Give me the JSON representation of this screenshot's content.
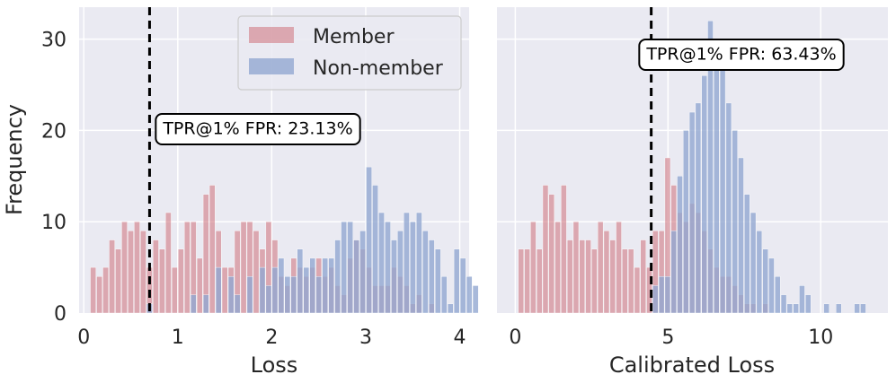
{
  "chart_data": [
    {
      "type": "histogram",
      "panel": "left",
      "xlabel": "Loss",
      "ylabel": "Frequency",
      "xlim": [
        -0.05,
        4.1
      ],
      "ylim": [
        0,
        33.5
      ],
      "xticks": [
        0,
        1,
        2,
        3,
        4
      ],
      "yticks": [
        0,
        10,
        20,
        30
      ],
      "bin_start": 0.07,
      "bin_width": 0.0667,
      "series": [
        {
          "name": "Member",
          "color": "#d17a84",
          "values": [
            5,
            4,
            5,
            8,
            7,
            10,
            9,
            10,
            9,
            5,
            8,
            7,
            11,
            5,
            7,
            10,
            10,
            6,
            13,
            14,
            9,
            5,
            5,
            9,
            10,
            10,
            9,
            7,
            10,
            8,
            4,
            3,
            6,
            5,
            4,
            5,
            6,
            4,
            5,
            3,
            2,
            6,
            8,
            7,
            5,
            3,
            3,
            3,
            5,
            4,
            3,
            1,
            2,
            0,
            1,
            0,
            0,
            0,
            0,
            0,
            0,
            0
          ]
        },
        {
          "name": "Non-member",
          "color": "#92a8d1",
          "values": [
            0,
            0,
            0,
            0,
            0,
            0,
            0,
            0,
            0,
            1,
            0,
            0,
            0,
            0,
            0,
            0,
            2,
            0,
            2,
            0,
            5,
            0,
            4,
            2,
            0,
            4,
            0,
            5,
            3,
            5,
            6,
            4,
            4,
            7,
            5,
            6,
            4,
            6,
            6,
            8,
            10,
            10,
            8,
            9,
            16,
            14,
            11,
            10,
            8,
            9,
            11,
            10,
            11,
            9,
            8,
            7,
            4,
            1,
            7,
            6,
            4,
            3
          ]
        }
      ],
      "annotation": {
        "text": "TPR@1% FPR: 23.13%",
        "x": 0.7
      },
      "threshold": 0.7,
      "legend": {
        "location": "top-right",
        "entries": [
          "Member",
          "Non-member"
        ]
      }
    },
    {
      "type": "histogram",
      "panel": "right",
      "xlabel": "Calibrated Loss",
      "xlim": [
        -0.6,
        12.2
      ],
      "ylim": [
        0,
        33.5
      ],
      "xticks": [
        0,
        5,
        10
      ],
      "bin_start": 0.1,
      "bin_width": 0.2,
      "series": [
        {
          "name": "Member",
          "color": "#d17a84",
          "values": [
            7,
            7,
            10,
            7,
            14,
            13,
            10,
            14,
            8,
            10,
            8,
            8,
            7,
            10,
            9,
            8,
            10,
            7,
            7,
            5,
            8,
            5,
            9,
            9,
            17,
            14,
            11,
            10,
            12,
            11,
            9,
            7,
            5,
            4,
            4,
            3,
            2,
            1,
            1,
            0,
            1,
            0,
            0,
            0,
            0,
            0,
            0,
            0,
            0,
            0,
            0,
            0,
            0,
            0,
            0,
            0,
            0
          ]
        },
        {
          "name": "Non-member",
          "color": "#92a8d1",
          "values": [
            0,
            0,
            0,
            0,
            0,
            0,
            0,
            0,
            0,
            0,
            0,
            0,
            0,
            0,
            0,
            0,
            0,
            0,
            0,
            0,
            0,
            0,
            3,
            4,
            4,
            9,
            15,
            20,
            22,
            23,
            26,
            32,
            30,
            28,
            23,
            20,
            17,
            13,
            11,
            9,
            7,
            6,
            4,
            2,
            1,
            1,
            3,
            2,
            0,
            0,
            1,
            0,
            1,
            0,
            0,
            1,
            1
          ]
        }
      ],
      "annotation": {
        "text": "TPR@1% FPR: 63.43%",
        "x": 4.45
      },
      "threshold": 4.45
    }
  ]
}
